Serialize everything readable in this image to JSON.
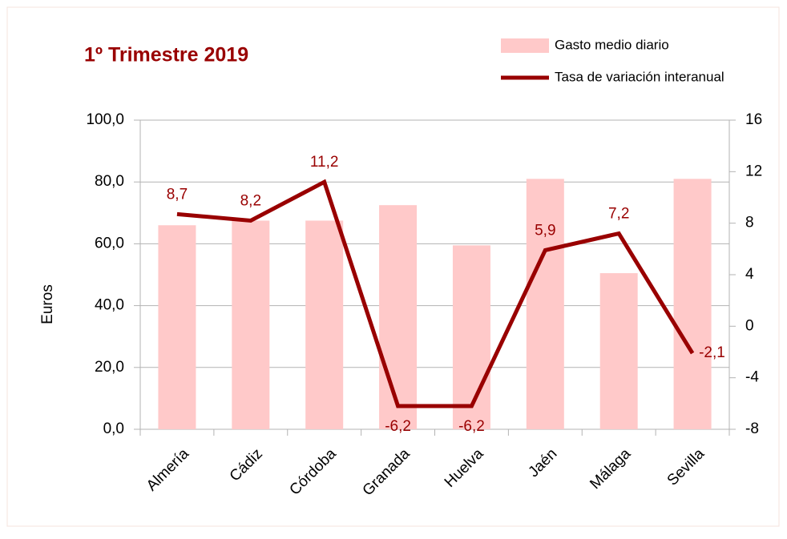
{
  "chart_data": {
    "type": "bar",
    "title": "1º Trimestre 2019",
    "y_label": "Euros",
    "categories": [
      "Almería",
      "Cádiz",
      "Córdoba",
      "Granada",
      "Huelva",
      "Jaén",
      "Málaga",
      "Sevilla"
    ],
    "series": [
      {
        "name": "Gasto medio diario",
        "type": "bar",
        "color": "#ffc9c9",
        "values": [
          66,
          67.5,
          67.5,
          72.5,
          59.5,
          81,
          50.5,
          81
        ]
      },
      {
        "name": "Tasa de variación interanual",
        "type": "line",
        "color": "#990000",
        "axis": "y2",
        "values": [
          8.7,
          8.2,
          11.2,
          -6.2,
          -6.2,
          5.9,
          7.2,
          -2.1
        ],
        "value_labels": [
          "8,7",
          "8,2",
          "11,2",
          "-6,2",
          "-6,2",
          "5,9",
          "7,2",
          "-2,1"
        ]
      }
    ],
    "ylim": [
      0,
      100
    ],
    "yticks": [
      {
        "value": 0,
        "label": "0,0"
      },
      {
        "value": 20,
        "label": "20,0"
      },
      {
        "value": 40,
        "label": "40,0"
      },
      {
        "value": 60,
        "label": "60,0"
      },
      {
        "value": 80,
        "label": "80,0"
      },
      {
        "value": 100,
        "label": "100,0"
      }
    ],
    "y2lim": [
      -8,
      16
    ],
    "y2ticks": [
      -8,
      -4,
      0,
      4,
      8,
      12,
      16
    ],
    "grid": true
  }
}
